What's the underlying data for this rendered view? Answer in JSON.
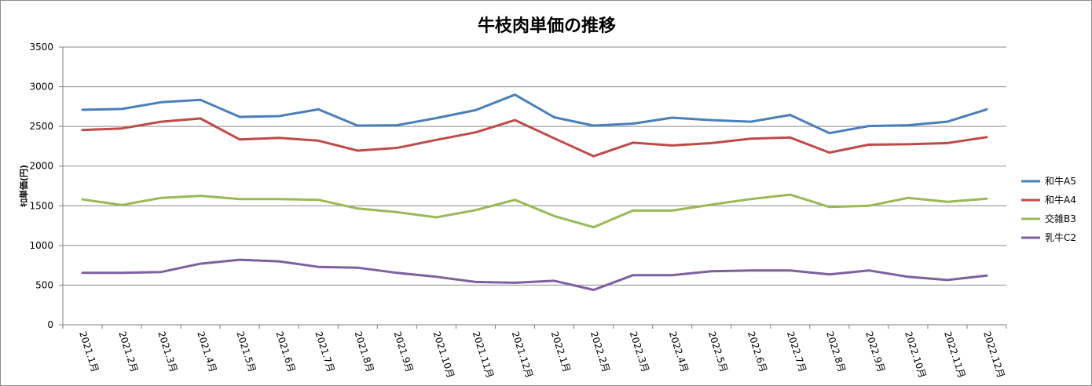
{
  "chart_data": {
    "type": "line",
    "title": "牛枝肉単価の推移",
    "ylabel": "ｷﾛ単価(円)",
    "xlabel": "",
    "ylim": [
      0,
      3500
    ],
    "yticks": [
      0,
      500,
      1000,
      1500,
      2000,
      2500,
      3000,
      3500
    ],
    "grid": true,
    "legend_position": "right",
    "categories": [
      "2021.1月",
      "2021.2月",
      "2021.3月",
      "2021.4月",
      "2021.5月",
      "2021.6月",
      "2021.7月",
      "2021.8月",
      "2021.9月",
      "2021.10月",
      "2021.11月",
      "2021.12月",
      "2022.1月",
      "2022.2月",
      "2022.3月",
      "2022.4月",
      "2022.5月",
      "2022.6月",
      "2022.7月",
      "2022.8月",
      "2022.9月",
      "2022.10月",
      "2022.11月",
      "2022.12月"
    ],
    "series": [
      {
        "name": "和牛A5",
        "color": "#4a7ebb",
        "values": [
          2710,
          2720,
          2805,
          2835,
          2620,
          2630,
          2715,
          2510,
          2515,
          2605,
          2705,
          2900,
          2615,
          2510,
          2535,
          2610,
          2580,
          2560,
          2645,
          2415,
          2505,
          2515,
          2560,
          2715
        ]
      },
      {
        "name": "和牛A4",
        "color": "#be4b48",
        "values": [
          2455,
          2475,
          2560,
          2600,
          2335,
          2355,
          2320,
          2195,
          2230,
          2330,
          2425,
          2580,
          2350,
          2125,
          2295,
          2260,
          2290,
          2345,
          2360,
          2170,
          2270,
          2275,
          2290,
          2365
        ]
      },
      {
        "name": "交雑B3",
        "color": "#98b954",
        "values": [
          1580,
          1510,
          1600,
          1625,
          1585,
          1585,
          1575,
          1465,
          1420,
          1355,
          1445,
          1575,
          1370,
          1230,
          1440,
          1440,
          1515,
          1585,
          1640,
          1485,
          1500,
          1600,
          1550,
          1590
        ]
      },
      {
        "name": "乳牛C2",
        "color": "#7d60a0",
        "values": [
          655,
          655,
          665,
          770,
          820,
          800,
          730,
          720,
          655,
          605,
          540,
          530,
          555,
          440,
          625,
          625,
          675,
          685,
          685,
          635,
          685,
          605,
          565,
          620
        ]
      }
    ]
  }
}
